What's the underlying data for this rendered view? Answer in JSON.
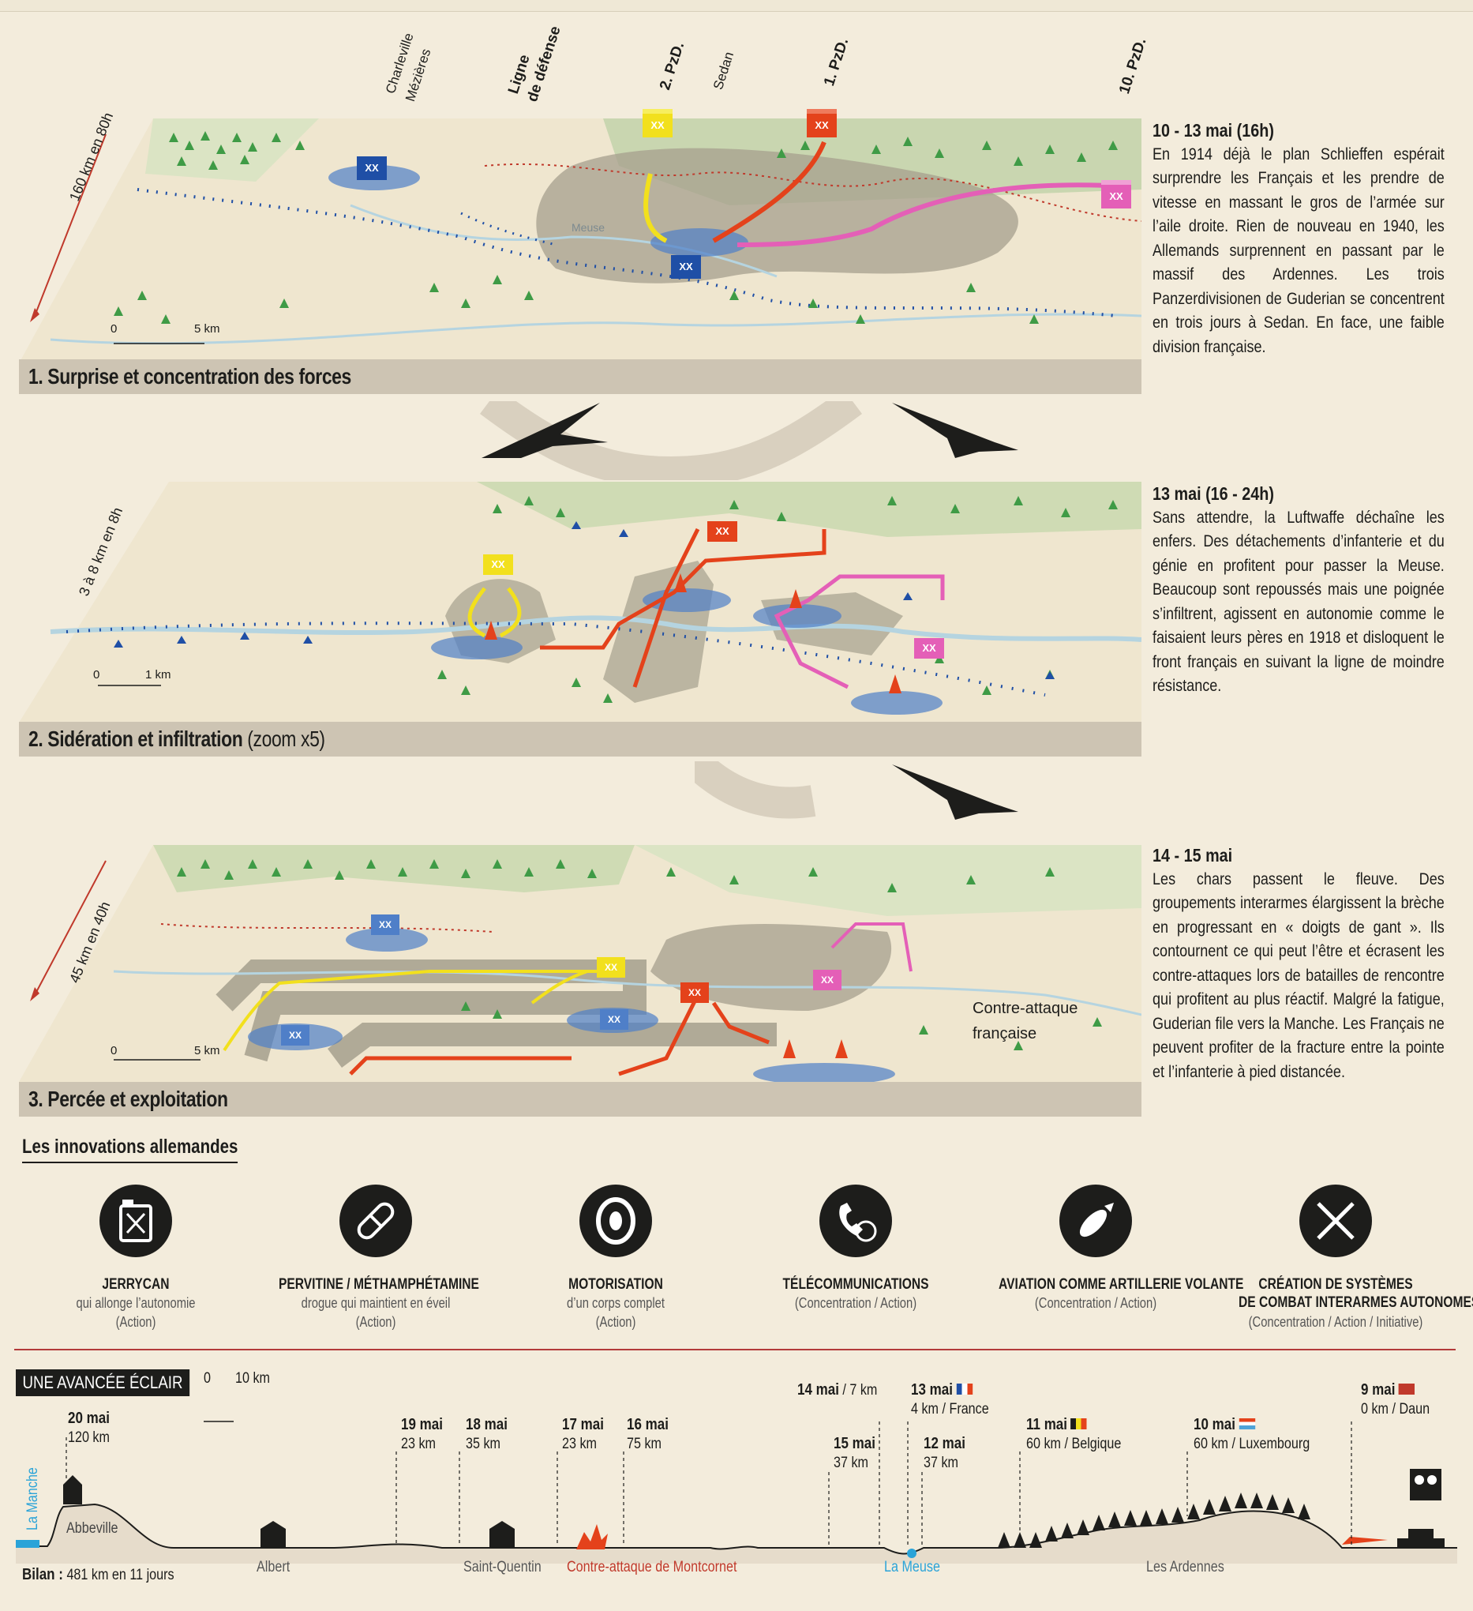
{
  "panels": [
    {
      "caption": "1. Surprise et concentration des forces",
      "caption_extra": "",
      "distance": "160 km en 80h",
      "scale_start": "0",
      "scale_end": "5 km",
      "labels": {
        "charleville": "Charleville",
        "mezieres": "Mézières",
        "ligne1": "Ligne",
        "ligne2": "de défense",
        "pzd2": "2. PzD.",
        "sedan": "Sedan",
        "pzd1": "1. PzD.",
        "pzd10": "10. PzD.",
        "meuse": "Meuse"
      },
      "date": "10 - 13 mai (16h)",
      "text": "En 1914 déjà le plan Schlieffen espérait surprendre les Français et les prendre de vitesse en massant le gros de l’armée sur l’aile droite. Rien de nouveau en 1940, les Allemands surprennent en passant par le massif des Ardennes. Les trois Panzerdivisionen de Guderian se concentrent en trois jours à Sedan. En face, une faible division française."
    },
    {
      "caption": "2. Sidération et infiltration",
      "caption_extra": "(zoom x5)",
      "distance": "3 à 8 km en 8h",
      "scale_start": "0",
      "scale_end": "1 km",
      "date": "13 mai (16 - 24h)",
      "text": "Sans attendre, la Luftwaffe déchaîne les enfers. Des détachements d’infanterie et du génie en profitent pour passer la Meuse. Beaucoup sont repoussés mais une poignée s’infiltrent, agissent en autonomie comme le faisaient leurs pères en 1918 et disloquent le front français en suivant la ligne de moindre résistance."
    },
    {
      "caption": "3. Percée et exploitation",
      "caption_extra": "",
      "distance": "45 km en 40h",
      "scale_start": "0",
      "scale_end": "5 km",
      "counter_attack_1": "Contre-attaque",
      "counter_attack_2": "française",
      "date": "14 - 15 mai",
      "text": "Les chars passent le fleuve. Des groupements interarmes élargissent la brèche en progressant en « doigts de gant ». Ils contournent ce qui peut l’être et écrasent les contre-attaques lors de batailles de rencontre qui profitent au plus réactif. Malgré la fatigue, Guderian file vers la Manche. Les Français ne peuvent profiter de la fracture entre la pointe et l’infanterie à pied distancée."
    }
  ],
  "unit_symbol": "XX",
  "innovations": {
    "title": "Les innovations allemandes",
    "items": [
      {
        "icon": "jerrycan-icon",
        "title": "JERRYCAN",
        "desc": "qui allonge l’autonomie",
        "tags": "(Action)"
      },
      {
        "icon": "pill-icon",
        "title": "PERVITINE / MÉTHAMPHÉTAMINE",
        "desc": "drogue qui maintient en éveil",
        "tags": "(Action)"
      },
      {
        "icon": "tire-icon",
        "title": "MOTORISATION",
        "desc": "d’un corps complet",
        "tags": "(Action)"
      },
      {
        "icon": "telephone-icon",
        "title": "TÉLÉCOMMUNICATIONS",
        "desc": "(Concentration / Action)",
        "tags": ""
      },
      {
        "icon": "bomb-icon",
        "title": "AVIATION COMME ARTILLERIE VOLANTE",
        "desc": "(Concentration / Action)",
        "tags": ""
      },
      {
        "icon": "crossed-rifles-icon",
        "title": "CRÉATION DE SYSTÈMES",
        "desc": "DE COMBAT INTERARMES AUTONOMES",
        "tags": "(Concentration / Action / Initiative)"
      }
    ]
  },
  "timeline": {
    "title": "UNE AVANCÉE ÉCLAIR",
    "scale_start": "0",
    "scale_end": "10 km",
    "events": [
      {
        "date": "20 mai",
        "dist": "120 km"
      },
      {
        "date": "19 mai",
        "dist": "23 km"
      },
      {
        "date": "18 mai",
        "dist": "35 km"
      },
      {
        "date": "17 mai",
        "dist": "23 km"
      },
      {
        "date": "16 mai",
        "dist": "75 km"
      },
      {
        "date": "14 mai",
        "dist": "/ 7 km"
      },
      {
        "date": "15 mai",
        "dist": "37 km"
      },
      {
        "date": "13 mai",
        "dist": "4 km / France"
      },
      {
        "date": "12 mai",
        "dist": "37 km"
      },
      {
        "date": "11 mai",
        "dist": "60 km / Belgique"
      },
      {
        "date": "10 mai",
        "dist": "60 km / Luxembourg"
      },
      {
        "date": "9 mai",
        "dist": "0 km / Daun"
      }
    ],
    "places": {
      "manche": "La Manche",
      "abbeville": "Abbeville",
      "albert": "Albert",
      "saint_quentin": "Saint-Quentin",
      "montcornet": "Contre-attaque de Montcornet",
      "meuse": "La Meuse",
      "ardennes": "Les Ardennes"
    },
    "bilan_label": "Bilan :",
    "bilan_value": "481 km en 11 jours"
  },
  "colors": {
    "french": "#1f4fa6",
    "pzd1": "#e4421b",
    "pzd2": "#f2e01d",
    "pzd10": "#e45fb7",
    "forest": "#3f9b46",
    "arrow_gray": "#9a9183",
    "accent_red": "#b33a3a"
  }
}
